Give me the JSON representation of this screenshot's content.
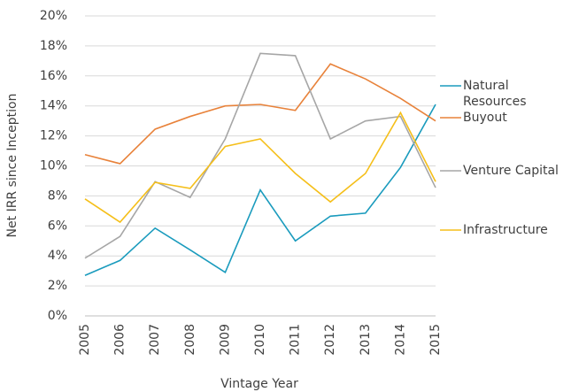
{
  "chart_data": {
    "type": "line",
    "categories": [
      "2005",
      "2006",
      "2007",
      "2008",
      "2009",
      "2010",
      "2011",
      "2012",
      "2013",
      "2014",
      "2015"
    ],
    "series": [
      {
        "name": "Natural Resources",
        "color": "#1a9bbd",
        "values": [
          2.7,
          3.7,
          5.85,
          4.4,
          2.9,
          8.4,
          5.0,
          6.65,
          6.85,
          9.9,
          14.1
        ]
      },
      {
        "name": "Buyout",
        "color": "#e8823a",
        "values": [
          10.75,
          10.15,
          12.45,
          13.3,
          14.0,
          14.1,
          13.7,
          16.8,
          15.8,
          14.5,
          13.0
        ]
      },
      {
        "name": "Venture Capital",
        "color": "#a6a6a6",
        "values": [
          3.85,
          5.3,
          8.95,
          7.9,
          11.8,
          17.5,
          17.35,
          11.8,
          13.0,
          13.3,
          8.55
        ]
      },
      {
        "name": "Infrastructure",
        "color": "#f5bf1a",
        "values": [
          7.8,
          6.25,
          8.9,
          8.5,
          11.3,
          11.8,
          9.5,
          7.6,
          9.5,
          13.55,
          8.95
        ]
      }
    ],
    "ylim": [
      0,
      20
    ],
    "yticks": [
      {
        "value": 0,
        "label": "0%"
      },
      {
        "value": 2,
        "label": "2%"
      },
      {
        "value": 4,
        "label": "4%"
      },
      {
        "value": 6,
        "label": "6%"
      },
      {
        "value": 8,
        "label": "8%"
      },
      {
        "value": 10,
        "label": "10%"
      },
      {
        "value": 12,
        "label": "12%"
      },
      {
        "value": 14,
        "label": "14%"
      },
      {
        "value": 16,
        "label": "16%"
      },
      {
        "value": 18,
        "label": "18%"
      },
      {
        "value": 20,
        "label": "20%"
      }
    ],
    "y_label": "Net IRR since Inception",
    "x_label": "Vintage Year",
    "grid": true,
    "legend": "right"
  }
}
